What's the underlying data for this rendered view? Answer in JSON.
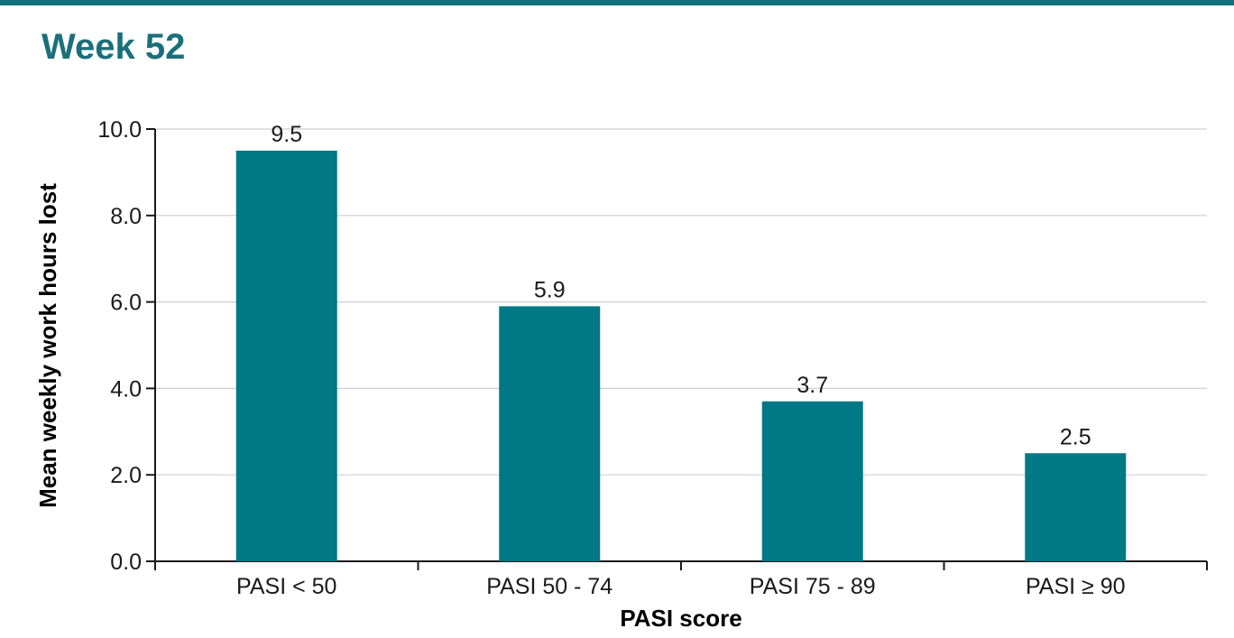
{
  "colors": {
    "accent": "#007886",
    "title": "#1a6f7b",
    "top_rule": "#10707c",
    "grid": "#cfcfcf",
    "axis": "#1a1a1a"
  },
  "header": {
    "title": "Week 52"
  },
  "chart_data": {
    "type": "bar",
    "categories": [
      "PASI < 50",
      "PASI 50 - 74",
      "PASI 75 - 89",
      "PASI ≥ 90"
    ],
    "values": [
      9.5,
      5.9,
      3.7,
      2.5
    ],
    "value_labels": [
      "9.5",
      "5.9",
      "3.7",
      "2.5"
    ],
    "xlabel": "PASI score",
    "ylabel": "Mean weekly work hours lost",
    "ylim": [
      0,
      10
    ],
    "yticks": [
      0,
      2,
      4,
      6,
      8,
      10
    ],
    "ytick_labels": [
      "0.0",
      "2.0",
      "4.0",
      "6.0",
      "8.0",
      "10.0"
    ],
    "grid": true
  }
}
